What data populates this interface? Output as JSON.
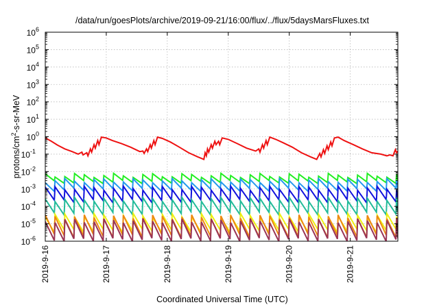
{
  "chart_data": {
    "type": "line",
    "title": "/data/run/goesPlots/archive/2019-09-21/16:00/flux/../flux/5daysMarsFluxes.txt",
    "xlabel": "Coordinated Universal Time (UTC)",
    "ylabel": "protons/cm2-s-sr-MeV",
    "ylabel_parts": [
      "protons/cm",
      "2",
      "-s-sr-MeV"
    ],
    "yscale": "log",
    "ylim": [
      1e-06,
      1000000.0
    ],
    "y_ticks": [
      {
        "base": "10",
        "exp": "6"
      },
      {
        "base": "10",
        "exp": "5"
      },
      {
        "base": "10",
        "exp": "4"
      },
      {
        "base": "10",
        "exp": "3"
      },
      {
        "base": "10",
        "exp": "2"
      },
      {
        "base": "10",
        "exp": "1"
      },
      {
        "base": "10",
        "exp": "0"
      },
      {
        "base": "10",
        "exp": "-1"
      },
      {
        "base": "10",
        "exp": "-2"
      },
      {
        "base": "10",
        "exp": "-3"
      },
      {
        "base": "10",
        "exp": "-4"
      },
      {
        "base": "10",
        "exp": "-5"
      },
      {
        "base": "10",
        "exp": "-6"
      }
    ],
    "x_tick_labels": [
      "2019-9-16",
      "2019-9-17",
      "2019-9-18",
      "2019-9-19",
      "2019-9-20",
      "2019-9-21"
    ],
    "xlim_days": [
      0,
      5.78
    ],
    "grid": true,
    "legend": "none",
    "series": [
      {
        "color": "#ee1111",
        "values": [
          [
            0.0,
            0.85
          ],
          [
            0.1,
            0.55
          ],
          [
            0.2,
            0.33
          ],
          [
            0.32,
            0.2
          ],
          [
            0.44,
            0.14
          ],
          [
            0.54,
            0.1
          ],
          [
            0.6,
            0.13
          ],
          [
            0.62,
            0.09
          ],
          [
            0.68,
            0.12
          ],
          [
            0.7,
            0.08
          ],
          [
            0.74,
            0.2
          ],
          [
            0.76,
            0.13
          ],
          [
            0.8,
            0.35
          ],
          [
            0.82,
            0.22
          ],
          [
            0.86,
            0.6
          ],
          [
            0.88,
            0.35
          ],
          [
            0.92,
            0.95
          ],
          [
            1.0,
            0.85
          ],
          [
            1.1,
            0.6
          ],
          [
            1.25,
            0.4
          ],
          [
            1.4,
            0.25
          ],
          [
            1.55,
            0.14
          ],
          [
            1.6,
            0.15
          ],
          [
            1.62,
            0.11
          ],
          [
            1.66,
            0.2
          ],
          [
            1.68,
            0.14
          ],
          [
            1.72,
            0.35
          ],
          [
            1.74,
            0.22
          ],
          [
            1.78,
            0.6
          ],
          [
            1.8,
            0.35
          ],
          [
            1.84,
            0.95
          ],
          [
            1.92,
            0.8
          ],
          [
            2.05,
            0.5
          ],
          [
            2.2,
            0.25
          ],
          [
            2.35,
            0.12
          ],
          [
            2.5,
            0.07
          ],
          [
            2.6,
            0.05
          ],
          [
            2.62,
            0.12
          ],
          [
            2.64,
            0.08
          ],
          [
            2.66,
            0.2
          ],
          [
            2.68,
            0.13
          ],
          [
            2.72,
            0.35
          ],
          [
            2.74,
            0.22
          ],
          [
            2.78,
            0.55
          ],
          [
            2.8,
            0.35
          ],
          [
            2.84,
            0.55
          ],
          [
            2.86,
            0.35
          ],
          [
            2.9,
            0.85
          ],
          [
            3.0,
            0.7
          ],
          [
            3.15,
            0.4
          ],
          [
            3.3,
            0.22
          ],
          [
            3.45,
            0.15
          ],
          [
            3.5,
            0.2
          ],
          [
            3.52,
            0.13
          ],
          [
            3.56,
            0.35
          ],
          [
            3.58,
            0.22
          ],
          [
            3.62,
            0.6
          ],
          [
            3.64,
            0.35
          ],
          [
            3.68,
            0.95
          ],
          [
            3.78,
            0.7
          ],
          [
            3.9,
            0.45
          ],
          [
            4.05,
            0.25
          ],
          [
            4.2,
            0.12
          ],
          [
            4.35,
            0.07
          ],
          [
            4.45,
            0.05
          ],
          [
            4.5,
            0.11
          ],
          [
            4.52,
            0.07
          ],
          [
            4.56,
            0.18
          ],
          [
            4.58,
            0.11
          ],
          [
            4.62,
            0.3
          ],
          [
            4.64,
            0.18
          ],
          [
            4.68,
            0.5
          ],
          [
            4.7,
            0.3
          ],
          [
            4.74,
            0.85
          ],
          [
            4.8,
            0.95
          ],
          [
            4.9,
            0.6
          ],
          [
            5.05,
            0.35
          ],
          [
            5.2,
            0.2
          ],
          [
            5.35,
            0.12
          ],
          [
            5.5,
            0.1
          ],
          [
            5.6,
            0.08
          ],
          [
            5.65,
            0.09
          ],
          [
            5.7,
            0.08
          ],
          [
            5.74,
            0.18
          ],
          [
            5.76,
            0.12
          ],
          [
            5.78,
            0.15
          ]
        ]
      },
      {
        "color": "#22ee22",
        "sawtooth": {
          "period": 0.16,
          "min": 0.0025,
          "max": 0.006
        }
      },
      {
        "color": "#2299ee",
        "sawtooth": {
          "period": 0.16,
          "min": 0.0009,
          "max": 0.003
        }
      },
      {
        "color": "#1111dd",
        "sawtooth": {
          "period": 0.16,
          "min": 0.0002,
          "max": 0.0011
        }
      },
      {
        "color": "#22bb99",
        "sawtooth": {
          "period": 0.16,
          "min": 4e-05,
          "max": 0.00025
        }
      },
      {
        "color": "#eeee11",
        "sawtooth": {
          "period": 0.16,
          "min": 4e-06,
          "max": 3e-05
        }
      },
      {
        "color": "#ee8811",
        "sawtooth": {
          "period": 0.16,
          "min": 2e-06,
          "max": 2.5e-05
        }
      },
      {
        "color": "#993355",
        "sawtooth": {
          "period": 0.16,
          "min": 1.2e-06,
          "max": 1.5e-05
        }
      }
    ]
  }
}
